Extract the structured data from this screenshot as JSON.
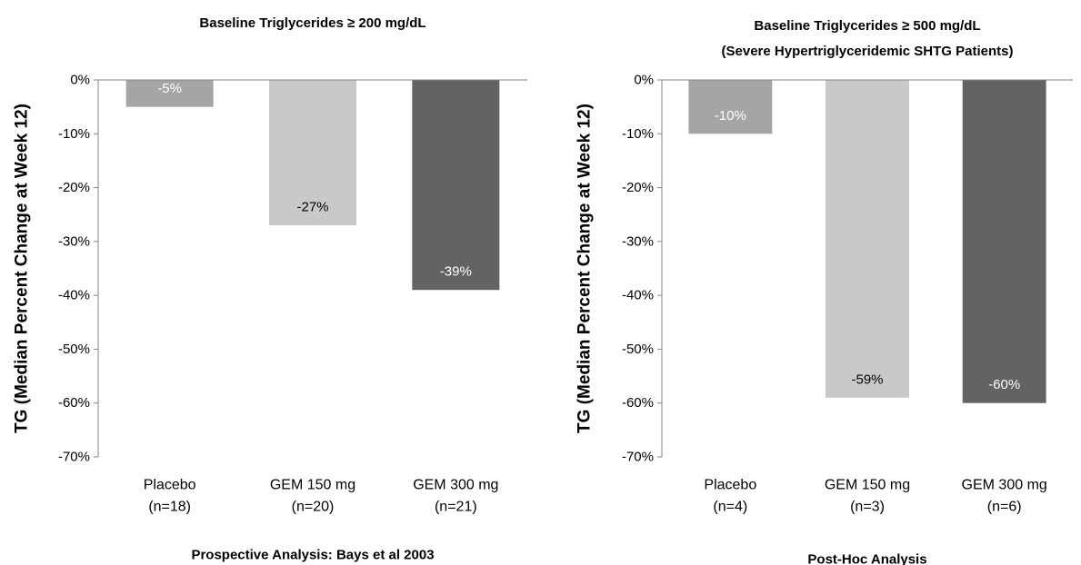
{
  "chart_data": [
    {
      "type": "bar",
      "title": "Baseline Triglycerides ≥ 200 mg/dL",
      "ylabel": "TG (Median Percent Change at Week 12)",
      "xlabel": "Prospective Analysis: Bays et al 2003",
      "ylim": [
        -70,
        0
      ],
      "yticks": [
        0,
        -10,
        -20,
        -30,
        -40,
        -50,
        -60,
        -70
      ],
      "ytick_labels": [
        "0%",
        "-10%",
        "-20%",
        "-30%",
        "-40%",
        "-50%",
        "-60%",
        "-70%"
      ],
      "categories": [
        [
          "Placebo",
          "(n=18)"
        ],
        [
          "GEM 150 mg",
          "(n=20)"
        ],
        [
          "GEM 300 mg",
          "(n=21)"
        ]
      ],
      "values": [
        -5,
        -27,
        -39
      ],
      "data_labels": [
        "-5%",
        "-27%",
        "-39%"
      ],
      "colors": [
        "#a5a5a5",
        "#c9c9c9",
        "#636363"
      ],
      "label_colors": [
        "#ffffff",
        "#000000",
        "#ffffff"
      ],
      "grid": false
    },
    {
      "type": "bar",
      "title": [
        "Baseline Triglycerides ≥ 500 mg/dL",
        "(Severe Hypertriglyceridemic SHTG Patients)"
      ],
      "ylabel": "TG (Median Percent Change at Week 12)",
      "xlabel": "Post-Hoc Analysis",
      "ylim": [
        -70,
        0
      ],
      "yticks": [
        0,
        -10,
        -20,
        -30,
        -40,
        -50,
        -60,
        -70
      ],
      "ytick_labels": [
        "0%",
        "-10%",
        "-20%",
        "-30%",
        "-40%",
        "-50%",
        "-60%",
        "-70%"
      ],
      "categories": [
        [
          "Placebo",
          "(n=4)"
        ],
        [
          "GEM 150 mg",
          "(n=3)"
        ],
        [
          "GEM 300 mg",
          "(n=6)"
        ]
      ],
      "values": [
        -10,
        -59,
        -60
      ],
      "data_labels": [
        "-10%",
        "-59%",
        "-60%"
      ],
      "colors": [
        "#a5a5a5",
        "#c9c9c9",
        "#636363"
      ],
      "label_colors": [
        "#ffffff",
        "#000000",
        "#ffffff"
      ],
      "grid": false
    }
  ]
}
